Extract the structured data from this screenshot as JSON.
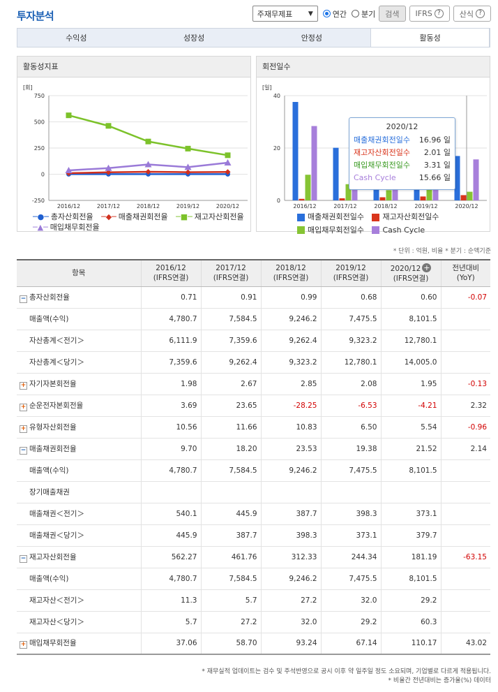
{
  "header": {
    "title": "투자분석",
    "select_value": "주재무제표",
    "radio_annual": "연간",
    "radio_quarter": "분기",
    "search_label": "검색",
    "ifrs_label": "IFRS",
    "formula_label": "산식"
  },
  "tabs": [
    "수익성",
    "성장성",
    "안정성",
    "활동성"
  ],
  "left_chart": {
    "title": "활동성지표",
    "unit": "[회]",
    "chart_data": {
      "type": "line",
      "categories": [
        "2016/12",
        "2017/12",
        "2018/12",
        "2019/12",
        "2020/12"
      ],
      "ylim": [
        -250,
        750
      ],
      "yticks": [
        "750",
        "500",
        "250",
        "0",
        "-250"
      ],
      "series": [
        {
          "name": "총자산회전율",
          "color": "#1f5fd0",
          "marker": "circle",
          "values": [
            0.71,
            0.91,
            0.99,
            0.68,
            0.6
          ]
        },
        {
          "name": "매출채권회전율",
          "color": "#d0301e",
          "marker": "diamond",
          "values": [
            9.7,
            18.2,
            23.53,
            19.38,
            21.52
          ]
        },
        {
          "name": "재고자산회전율",
          "color": "#7cc22a",
          "marker": "square",
          "values": [
            562.27,
            461.76,
            312.33,
            244.34,
            181.19
          ]
        },
        {
          "name": "매입채무회전율",
          "color": "#9a7ad8",
          "marker": "triangle",
          "values": [
            37.06,
            58.7,
            93.24,
            67.14,
            110.17
          ]
        }
      ]
    }
  },
  "right_chart": {
    "title": "회전일수",
    "unit": "[일]",
    "chart_data": {
      "type": "bar",
      "categories": [
        "2016/12",
        "2017/12",
        "2018/12",
        "2019/12",
        "2020/12"
      ],
      "ylim": [
        0,
        40
      ],
      "yticks": [
        "40",
        "20",
        "0"
      ],
      "series": [
        {
          "name": "매출채권회전일수",
          "color": "#2a6fdb",
          "values": [
            37.6,
            20.1,
            15.5,
            18.8,
            16.96
          ]
        },
        {
          "name": "재고자산회전일수",
          "color": "#d9351c",
          "values": [
            0.6,
            0.8,
            1.2,
            1.5,
            2.01
          ]
        },
        {
          "name": "매입채무회전일수",
          "color": "#86c434",
          "values": [
            9.8,
            6.2,
            3.9,
            5.4,
            3.31
          ]
        },
        {
          "name": "Cash Cycle",
          "color": "#a77fdb",
          "values": [
            28.4,
            14.7,
            12.8,
            14.9,
            15.66
          ]
        }
      ]
    },
    "tooltip": {
      "title": "2020/12",
      "rows": [
        {
          "label": "매출채권회전일수",
          "value": "16.96 일",
          "color": "#2a6fdb"
        },
        {
          "label": "재고자산회전일수",
          "value": "2.01 일",
          "color": "#d9351c"
        },
        {
          "label": "매입채무회전일수",
          "value": "3.31 일",
          "color": "#3a9a22"
        },
        {
          "label": "Cash Cycle",
          "value": "15.66 일",
          "color": "#a77fdb"
        }
      ]
    }
  },
  "notes_top": "* 단위 : 억원, 비율   * 분기 : 순액기준",
  "table": {
    "headers": [
      {
        "line1": "항목",
        "line2": ""
      },
      {
        "line1": "2016/12",
        "line2": "(IFRS연결)"
      },
      {
        "line1": "2017/12",
        "line2": "(IFRS연결)"
      },
      {
        "line1": "2018/12",
        "line2": "(IFRS연결)"
      },
      {
        "line1": "2019/12",
        "line2": "(IFRS연결)"
      },
      {
        "line1": "2020/12",
        "line2": "(IFRS연결)"
      },
      {
        "line1": "전년대비",
        "line2": "(YoY)"
      }
    ],
    "rows": [
      {
        "label": "총자산회전율",
        "toggle": "minus",
        "values": [
          "0.71",
          "0.91",
          "0.99",
          "0.68",
          "0.60"
        ],
        "yoy": "-0.07"
      },
      {
        "label": "매출액(수익)",
        "toggle": "",
        "values": [
          "4,780.7",
          "7,584.5",
          "9,246.2",
          "7,475.5",
          "8,101.5"
        ],
        "yoy": ""
      },
      {
        "label": "자산총계＜전기＞",
        "toggle": "",
        "values": [
          "6,111.9",
          "7,359.6",
          "9,262.4",
          "9,323.2",
          "12,780.1"
        ],
        "yoy": ""
      },
      {
        "label": "자산총계＜당기＞",
        "toggle": "",
        "values": [
          "7,359.6",
          "9,262.4",
          "9,323.2",
          "12,780.1",
          "14,005.0"
        ],
        "yoy": ""
      },
      {
        "label": "자기자본회전율",
        "toggle": "plus",
        "values": [
          "1.98",
          "2.67",
          "2.85",
          "2.08",
          "1.95"
        ],
        "yoy": "-0.13"
      },
      {
        "label": "순운전자본회전율",
        "toggle": "plus",
        "values": [
          "3.69",
          "23.65",
          "-28.25",
          "-6.53",
          "-4.21"
        ],
        "yoy": "2.32"
      },
      {
        "label": "유형자산회전율",
        "toggle": "plus",
        "values": [
          "10.56",
          "11.66",
          "10.83",
          "6.50",
          "5.54"
        ],
        "yoy": "-0.96"
      },
      {
        "label": "매출채권회전율",
        "toggle": "minus",
        "values": [
          "9.70",
          "18.20",
          "23.53",
          "19.38",
          "21.52"
        ],
        "yoy": "2.14"
      },
      {
        "label": "매출액(수익)",
        "toggle": "",
        "values": [
          "4,780.7",
          "7,584.5",
          "9,246.2",
          "7,475.5",
          "8,101.5"
        ],
        "yoy": ""
      },
      {
        "label": "장기매출채권",
        "toggle": "",
        "values": [
          "",
          "",
          "",
          "",
          ""
        ],
        "yoy": ""
      },
      {
        "label": "매출채권＜전기＞",
        "toggle": "",
        "values": [
          "540.1",
          "445.9",
          "387.7",
          "398.3",
          "373.1"
        ],
        "yoy": ""
      },
      {
        "label": "매출채권＜당기＞",
        "toggle": "",
        "values": [
          "445.9",
          "387.7",
          "398.3",
          "373.1",
          "379.7"
        ],
        "yoy": ""
      },
      {
        "label": "재고자산회전율",
        "toggle": "minus",
        "values": [
          "562.27",
          "461.76",
          "312.33",
          "244.34",
          "181.19"
        ],
        "yoy": "-63.15"
      },
      {
        "label": "매출액(수익)",
        "toggle": "",
        "values": [
          "4,780.7",
          "7,584.5",
          "9,246.2",
          "7,475.5",
          "8,101.5"
        ],
        "yoy": ""
      },
      {
        "label": "재고자산＜전기＞",
        "toggle": "",
        "values": [
          "11.3",
          "5.7",
          "27.2",
          "32.0",
          "29.2"
        ],
        "yoy": ""
      },
      {
        "label": "재고자산＜당기＞",
        "toggle": "",
        "values": [
          "5.7",
          "27.2",
          "32.0",
          "29.2",
          "60.3"
        ],
        "yoy": ""
      },
      {
        "label": "매입채무회전율",
        "toggle": "plus",
        "values": [
          "37.06",
          "58.70",
          "93.24",
          "67.14",
          "110.17"
        ],
        "yoy": "43.02"
      }
    ]
  },
  "footnotes": [
    "* 재무실적 업데이트는 검수 및 주석반영으로 공시 이후 약 일주일 정도 소요되며, 기업별로 다르게 적용됩니다.",
    "* 비율간 전년대비는 증가율(%) 데이터"
  ]
}
